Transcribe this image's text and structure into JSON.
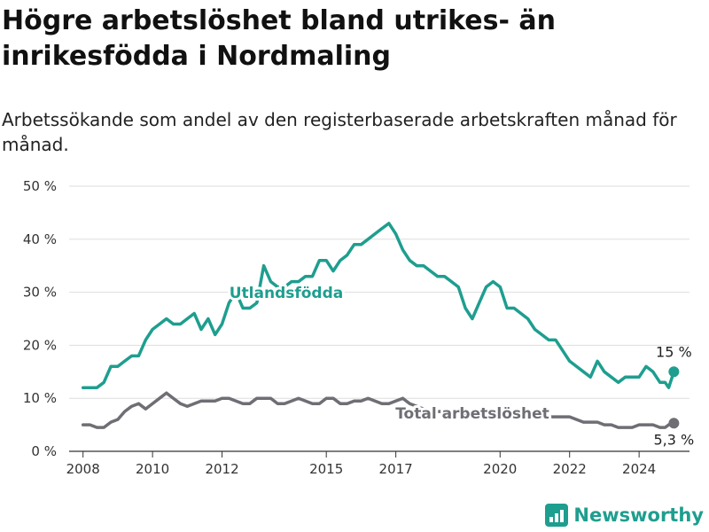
{
  "title": "Högre arbetslöshet bland utrikes- än inrikesfödda i Nordmaling",
  "subtitle": "Arbetssökande som andel av den registerbaserade arbetskraften månad för månad.",
  "brand": {
    "name": "Newsworthy"
  },
  "colors": {
    "foreign": "#1e9e8f",
    "total": "#6e6e74",
    "grid": "#dddddd",
    "axis": "#333333"
  },
  "chart_data": {
    "type": "line",
    "title": "Högre arbetslöshet bland utrikes- än inrikesfödda i Nordmaling",
    "subtitle": "Arbetssökande som andel av den registerbaserade arbetskraften månad för månad.",
    "xlabel": "",
    "ylabel": "",
    "xlim": [
      2007.6,
      2025.45
    ],
    "ylim": [
      0,
      50
    ],
    "yticks": [
      0,
      10,
      20,
      30,
      40,
      50
    ],
    "ytick_labels": [
      "0 %",
      "10 %",
      "20 %",
      "30 %",
      "40 %",
      "50 %"
    ],
    "xticks": [
      2008,
      2010,
      2012,
      2015,
      2017,
      2020,
      2022,
      2024
    ],
    "xtick_labels": [
      "2008",
      "2010",
      "2012",
      "2015",
      "2017",
      "2020",
      "2022",
      "2024"
    ],
    "grid": true,
    "legend": "inline labels",
    "series": [
      {
        "name": "Utlandsfödda",
        "end_label": "15 %",
        "x": [
          2008.0,
          2008.2,
          2008.4,
          2008.6,
          2008.8,
          2009.0,
          2009.2,
          2009.4,
          2009.6,
          2009.8,
          2010.0,
          2010.2,
          2010.4,
          2010.6,
          2010.8,
          2011.0,
          2011.2,
          2011.4,
          2011.6,
          2011.8,
          2012.0,
          2012.2,
          2012.4,
          2012.6,
          2012.8,
          2013.0,
          2013.2,
          2013.4,
          2013.6,
          2013.8,
          2014.0,
          2014.2,
          2014.4,
          2014.6,
          2014.8,
          2015.0,
          2015.2,
          2015.4,
          2015.6,
          2015.8,
          2016.0,
          2016.2,
          2016.4,
          2016.6,
          2016.8,
          2017.0,
          2017.2,
          2017.4,
          2017.6,
          2017.8,
          2018.0,
          2018.2,
          2018.4,
          2018.6,
          2018.8,
          2019.0,
          2019.2,
          2019.4,
          2019.6,
          2019.8,
          2020.0,
          2020.2,
          2020.4,
          2020.6,
          2020.8,
          2021.0,
          2021.2,
          2021.4,
          2021.6,
          2021.8,
          2022.0,
          2022.2,
          2022.4,
          2022.6,
          2022.8,
          2023.0,
          2023.2,
          2023.4,
          2023.6,
          2023.8,
          2024.0,
          2024.2,
          2024.4,
          2024.6,
          2024.75,
          2024.85,
          2025.0
        ],
        "values": [
          12,
          12,
          12,
          13,
          16,
          16,
          17,
          18,
          18,
          21,
          23,
          24,
          25,
          24,
          24,
          25,
          26,
          23,
          25,
          22,
          24,
          28,
          30,
          27,
          27,
          28,
          35,
          32,
          31,
          31,
          32,
          32,
          33,
          33,
          36,
          36,
          34,
          36,
          37,
          39,
          39,
          40,
          41,
          42,
          43,
          41,
          38,
          36,
          35,
          35,
          34,
          33,
          33,
          32,
          31,
          27,
          25,
          28,
          31,
          32,
          31,
          27,
          27,
          26,
          25,
          23,
          22,
          21,
          21,
          19,
          17,
          16,
          15,
          14,
          17,
          15,
          14,
          13,
          14,
          14,
          14,
          16,
          15,
          13,
          13,
          12,
          15
        ]
      },
      {
        "name": "Total arbetslöshet",
        "end_label": "5,3 %",
        "x": [
          2008.0,
          2008.2,
          2008.4,
          2008.6,
          2008.8,
          2009.0,
          2009.2,
          2009.4,
          2009.6,
          2009.8,
          2010.0,
          2010.2,
          2010.4,
          2010.6,
          2010.8,
          2011.0,
          2011.2,
          2011.4,
          2011.6,
          2011.8,
          2012.0,
          2012.2,
          2012.4,
          2012.6,
          2012.8,
          2013.0,
          2013.2,
          2013.4,
          2013.6,
          2013.8,
          2014.0,
          2014.2,
          2014.4,
          2014.6,
          2014.8,
          2015.0,
          2015.2,
          2015.4,
          2015.6,
          2015.8,
          2016.0,
          2016.2,
          2016.4,
          2016.6,
          2016.8,
          2017.0,
          2017.2,
          2017.4,
          2017.6,
          2017.8,
          2018.0,
          2018.2,
          2018.4,
          2018.6,
          2018.8,
          2019.0,
          2019.2,
          2019.4,
          2019.6,
          2019.8,
          2020.0,
          2020.2,
          2020.4,
          2020.6,
          2020.8,
          2021.0,
          2021.2,
          2021.4,
          2021.6,
          2021.8,
          2022.0,
          2022.2,
          2022.4,
          2022.6,
          2022.8,
          2023.0,
          2023.2,
          2023.4,
          2023.6,
          2023.8,
          2024.0,
          2024.2,
          2024.4,
          2024.6,
          2024.75,
          2024.85,
          2025.0
        ],
        "values": [
          5,
          5,
          4.5,
          4.5,
          5.5,
          6,
          7.5,
          8.5,
          9,
          8,
          9,
          10,
          11,
          10,
          9,
          8.5,
          9,
          9.5,
          9.5,
          9.5,
          10,
          10,
          9.5,
          9,
          9,
          10,
          10,
          10,
          9,
          9,
          9.5,
          10,
          9.5,
          9,
          9,
          10,
          10,
          9,
          9,
          9.5,
          9.5,
          10,
          9.5,
          9,
          9,
          9.5,
          10,
          9,
          8.5,
          8,
          7.5,
          7.5,
          7.5,
          7,
          7,
          7,
          6.5,
          6.5,
          6.5,
          6.5,
          6.5,
          6.5,
          6.5,
          6.5,
          6.5,
          6.5,
          6.5,
          6.5,
          6.5,
          6.5,
          6.5,
          6,
          5.5,
          5.5,
          5.5,
          5,
          5,
          4.5,
          4.5,
          4.5,
          5,
          5,
          5,
          4.5,
          4.5,
          5,
          5.3
        ]
      }
    ]
  }
}
